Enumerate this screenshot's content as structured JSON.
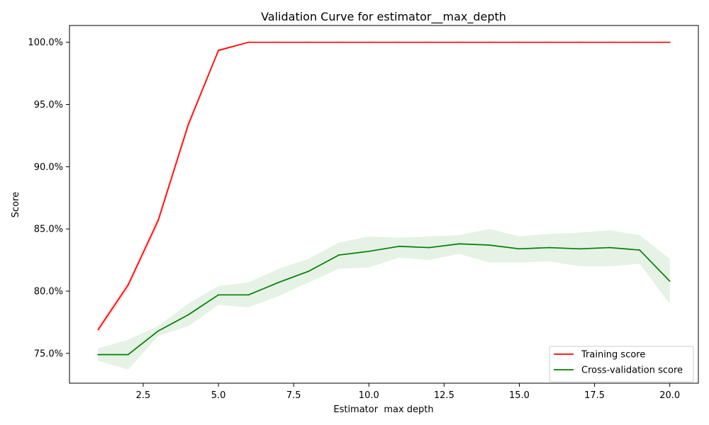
{
  "chart_data": {
    "type": "line",
    "title": "Validation Curve for estimator__max_depth",
    "xlabel": "Estimator  max depth",
    "ylabel": "Score",
    "x": [
      1,
      2,
      3,
      4,
      5,
      6,
      7,
      8,
      9,
      10,
      11,
      12,
      13,
      14,
      15,
      16,
      17,
      18,
      19,
      20
    ],
    "xlim": [
      0.05,
      20.95
    ],
    "ylim": [
      72.6,
      101.35
    ],
    "x_ticks": [
      2.5,
      5.0,
      7.5,
      10.0,
      12.5,
      15.0,
      17.5,
      20.0
    ],
    "x_tick_labels": [
      "2.5",
      "5.0",
      "7.5",
      "10.0",
      "12.5",
      "15.0",
      "17.5",
      "20.0"
    ],
    "y_ticks": [
      75,
      80,
      85,
      90,
      95,
      100
    ],
    "y_tick_labels": [
      "75.0%",
      "80.0%",
      "85.0%",
      "90.0%",
      "95.0%",
      "100.0%"
    ],
    "grid": false,
    "legend_position": "lower-right",
    "series": [
      {
        "name": "Training score",
        "color": "#ff0000",
        "band_color": "#ff0000",
        "values": [
          76.9,
          80.5,
          85.7,
          93.4,
          99.35,
          100,
          100,
          100,
          100,
          100,
          100,
          100,
          100,
          100,
          100,
          100,
          100,
          100,
          100,
          100
        ],
        "lower": [
          76.6,
          80.1,
          85.3,
          93.0,
          99.2,
          100,
          100,
          100,
          100,
          100,
          100,
          100,
          100,
          100,
          100,
          100,
          100,
          100,
          100,
          100
        ],
        "upper": [
          77.2,
          80.8,
          86.1,
          93.8,
          99.5,
          100,
          100,
          100,
          100,
          100,
          100,
          100,
          100,
          100,
          100,
          100,
          100,
          100,
          100,
          100
        ]
      },
      {
        "name": "Cross-validation score",
        "color": "#008000",
        "band_color": "#008000",
        "values": [
          74.9,
          74.9,
          76.8,
          78.1,
          79.7,
          79.7,
          80.7,
          81.6,
          82.9,
          83.2,
          83.6,
          83.5,
          83.8,
          83.7,
          83.4,
          83.5,
          83.4,
          83.5,
          83.3,
          80.8
        ],
        "lower": [
          74.4,
          73.7,
          76.4,
          77.2,
          78.9,
          78.7,
          79.6,
          80.7,
          81.8,
          81.9,
          82.7,
          82.5,
          83.0,
          82.3,
          82.3,
          82.4,
          82.0,
          82.0,
          82.2,
          79.0
        ],
        "upper": [
          75.4,
          76.1,
          77.2,
          79.0,
          80.4,
          80.7,
          81.8,
          82.6,
          83.9,
          84.4,
          84.3,
          84.4,
          84.5,
          85.0,
          84.4,
          84.6,
          84.7,
          84.9,
          84.5,
          82.6
        ]
      }
    ]
  }
}
